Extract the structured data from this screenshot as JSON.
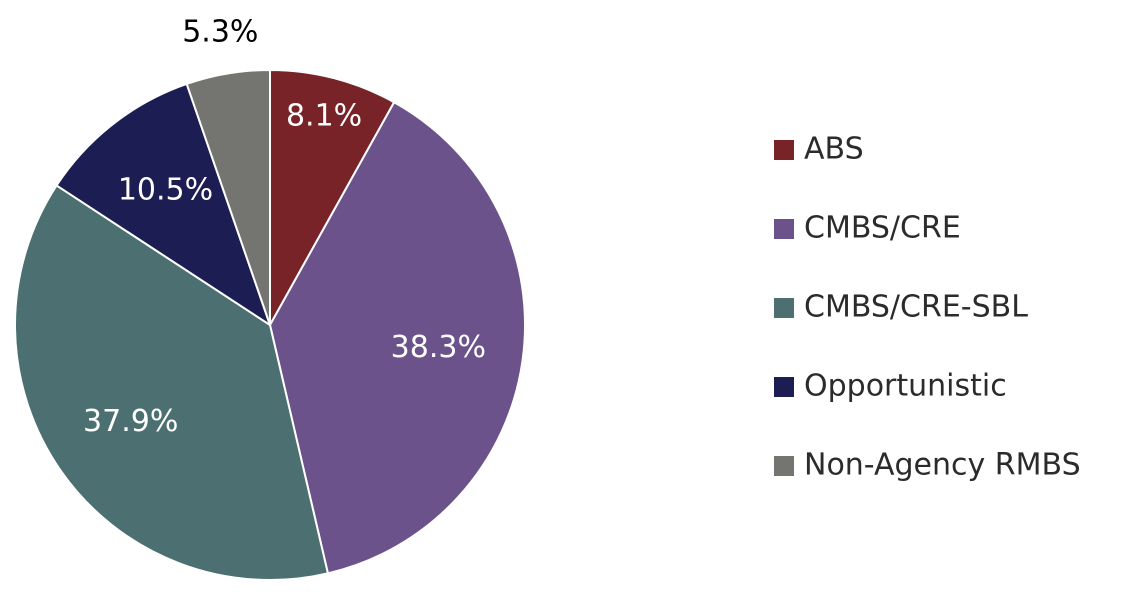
{
  "chart_data": {
    "type": "pie",
    "categories": [
      "ABS",
      "CMBS/CRE",
      "CMBS/CRE-SBL",
      "Opportunistic",
      "Non-Agency RMBS"
    ],
    "values": [
      8.1,
      38.3,
      37.9,
      10.5,
      5.3
    ],
    "labels": [
      "8.1%",
      "38.3%",
      "37.9%",
      "10.5%",
      "5.3%"
    ],
    "colors": [
      "#782328",
      "#6b528a",
      "#4c7071",
      "#1c1d53",
      "#747471"
    ],
    "label_colors": [
      "#ffffff",
      "#ffffff",
      "#ffffff",
      "#ffffff",
      "#000000"
    ],
    "start": "12 o'clock",
    "direction": "clockwise",
    "legend": "right"
  }
}
